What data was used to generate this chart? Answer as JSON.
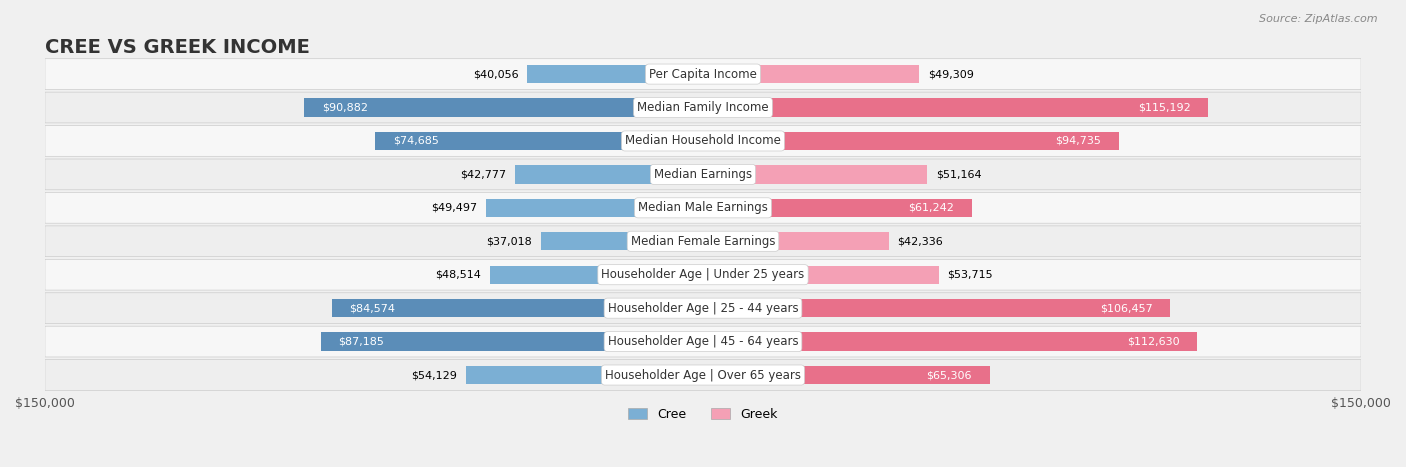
{
  "title": "CREE VS GREEK INCOME",
  "source": "Source: ZipAtlas.com",
  "categories": [
    "Per Capita Income",
    "Median Family Income",
    "Median Household Income",
    "Median Earnings",
    "Median Male Earnings",
    "Median Female Earnings",
    "Householder Age | Under 25 years",
    "Householder Age | 25 - 44 years",
    "Householder Age | 45 - 64 years",
    "Householder Age | Over 65 years"
  ],
  "cree_values": [
    40056,
    90882,
    74685,
    42777,
    49497,
    37018,
    48514,
    84574,
    87185,
    54129
  ],
  "greek_values": [
    49309,
    115192,
    94735,
    51164,
    61242,
    42336,
    53715,
    106457,
    112630,
    65306
  ],
  "max_value": 150000,
  "cree_color": "#7bafd4",
  "cree_color_dark": "#5b8db8",
  "greek_color": "#f4a0b5",
  "greek_color_dark": "#e8708a",
  "bg_color": "#f0f0f0",
  "row_bg": "#f7f7f7",
  "row_bg_alt": "#eeeeee",
  "label_box_color": "#ffffff",
  "title_fontsize": 14,
  "label_fontsize": 8.5,
  "value_fontsize": 8,
  "legend_fontsize": 9
}
